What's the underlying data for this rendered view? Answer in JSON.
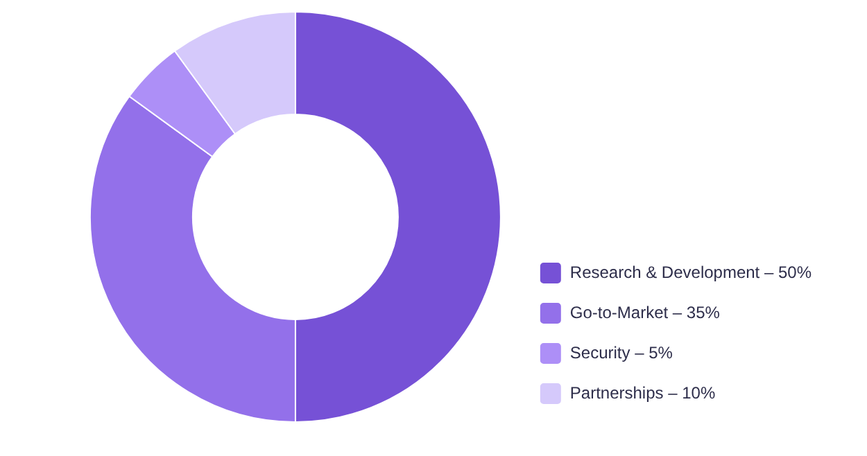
{
  "chart_data": {
    "type": "donut",
    "categories": [
      "Research & Development – 50%",
      "Go-to-Market – 35%",
      "Security – 5%",
      "Partnerships – 10%"
    ],
    "values": [
      50,
      35,
      5,
      10
    ],
    "colors": [
      "#7651d6",
      "#9370ea",
      "#ad8ff7",
      "#d5c9fb"
    ],
    "legend": "bottom right"
  }
}
